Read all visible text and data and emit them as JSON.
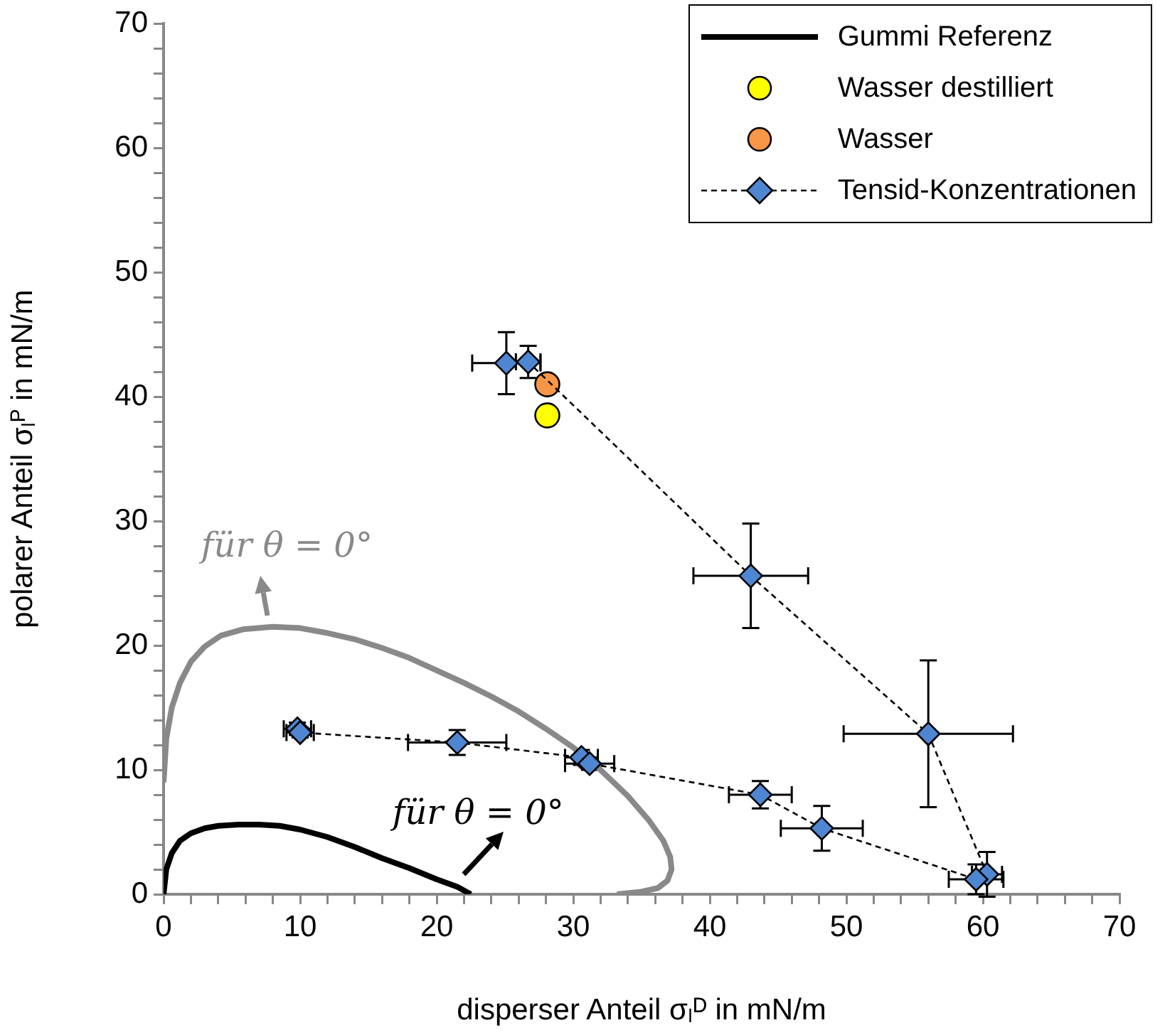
{
  "chart_data": {
    "type": "scatter",
    "xlabel": "disperser Anteil σₗᴰ in mN/m",
    "ylabel": "polarer Anteil σₗᴾ in mN/m",
    "legend": "top right",
    "xlim": [
      0,
      70
    ],
    "ylim": [
      0,
      70
    ],
    "xticks": [
      0,
      {
        "value": 2,
        "label": null
      },
      {
        "value": 4,
        "label": null
      },
      {
        "value": 6,
        "label": null
      },
      {
        "value": 8,
        "label": null
      },
      10,
      {
        "value": 12,
        "label": null
      },
      {
        "value": 14,
        "label": null
      },
      {
        "value": 16,
        "label": null
      },
      {
        "value": 18,
        "label": null
      },
      20,
      {
        "value": 22,
        "label": null
      },
      {
        "value": 24,
        "label": null
      },
      {
        "value": 26,
        "label": null
      },
      {
        "value": 28,
        "label": null
      },
      30,
      {
        "value": 32,
        "label": null
      },
      {
        "value": 34,
        "label": null
      },
      {
        "value": 36,
        "label": null
      },
      {
        "value": 38,
        "label": null
      },
      40,
      {
        "value": 42,
        "label": null
      },
      {
        "value": 44,
        "label": null
      },
      {
        "value": 46,
        "label": null
      },
      {
        "value": 48,
        "label": null
      },
      50,
      {
        "value": 52,
        "label": null
      },
      {
        "value": 54,
        "label": null
      },
      {
        "value": 56,
        "label": null
      },
      {
        "value": 58,
        "label": null
      },
      60,
      {
        "value": 62,
        "label": null
      },
      {
        "value": 64,
        "label": null
      },
      {
        "value": 66,
        "label": null
      },
      {
        "value": 68,
        "label": null
      },
      70
    ],
    "yticks": [
      0,
      {
        "value": 2,
        "label": null
      },
      {
        "value": 4,
        "label": null
      },
      {
        "value": 6,
        "label": null
      },
      {
        "value": 8,
        "label": null
      },
      10,
      {
        "value": 12,
        "label": null
      },
      {
        "value": 14,
        "label": null
      },
      {
        "value": 16,
        "label": null
      },
      {
        "value": 18,
        "label": null
      },
      20,
      {
        "value": 22,
        "label": null
      },
      {
        "value": 24,
        "label": null
      },
      {
        "value": 26,
        "label": null
      },
      {
        "value": 28,
        "label": null
      },
      30,
      {
        "value": 32,
        "label": null
      },
      {
        "value": 34,
        "label": null
      },
      {
        "value": 36,
        "label": null
      },
      {
        "value": 38,
        "label": null
      },
      40,
      {
        "value": 42,
        "label": null
      },
      {
        "value": 44,
        "label": null
      },
      {
        "value": 46,
        "label": null
      },
      {
        "value": 48,
        "label": null
      },
      50,
      {
        "value": 52,
        "label": null
      },
      {
        "value": 54,
        "label": null
      },
      {
        "value": 56,
        "label": null
      },
      {
        "value": 58,
        "label": null
      },
      60,
      {
        "value": 62,
        "label": null
      },
      {
        "value": 64,
        "label": null
      },
      {
        "value": 66,
        "label": null
      },
      {
        "value": 68,
        "label": null
      },
      70
    ],
    "series": [
      {
        "type": "line",
        "color": "#898989",
        "marker": "none",
        "line_style": "solid",
        "x": [
          0,
          0.2,
          0.6,
          1.2,
          2,
          3,
          4.2,
          5.8,
          8,
          10,
          12,
          14,
          16,
          18,
          20,
          22,
          24,
          26,
          28,
          30,
          32,
          34,
          35.5,
          36.6,
          37.1,
          37.2,
          36.9,
          36.2,
          35,
          33.2
        ],
        "values": [
          9,
          12.5,
          15,
          17,
          18.7,
          19.9,
          20.8,
          21.3,
          21.5,
          21.4,
          21,
          20.5,
          19.8,
          19,
          18,
          17,
          15.9,
          14.7,
          13.3,
          11.8,
          10,
          7.9,
          6,
          4.3,
          3,
          2,
          1.1,
          0.5,
          0.2,
          0
        ]
      },
      {
        "name": "Gummi Referenz",
        "type": "line",
        "color": "#000000",
        "marker": "none",
        "line_style": "solid",
        "x": [
          0,
          0.2,
          0.6,
          1.2,
          2,
          3,
          4,
          5.5,
          7,
          8.5,
          10,
          12,
          14,
          16,
          18,
          20,
          21.5,
          22.5
        ],
        "values": [
          0,
          2,
          3.3,
          4.3,
          4.9,
          5.3,
          5.5,
          5.6,
          5.6,
          5.5,
          5.2,
          4.6,
          3.8,
          2.9,
          2.1,
          1.2,
          0.6,
          0
        ]
      },
      {
        "name": "Wasser destilliert",
        "type": "scatter",
        "color": "#ffff00",
        "marker": "circle",
        "x": [
          28.1
        ],
        "values": [
          38.5
        ]
      },
      {
        "name": "Wasser",
        "type": "scatter",
        "color": "#f79646",
        "marker": "circle",
        "x": [
          28.1
        ],
        "values": [
          41
        ]
      },
      {
        "name": "Tensid-Konzentrationen",
        "type": "line",
        "color": "#4f86d1",
        "marker": "diamond",
        "line_style": "dashed",
        "x": [
          25.1,
          26.7,
          43,
          56,
          60.3,
          null,
          9.8,
          10,
          21.5,
          30.6,
          31.2,
          43.7,
          48.2,
          59.5
        ],
        "values": [
          42.7,
          42.8,
          25.6,
          12.9,
          1.6,
          null,
          13.3,
          13,
          12.2,
          11,
          10.5,
          8,
          5.3,
          1.2
        ],
        "xerrors": [
          2.5,
          0.9,
          4.2,
          6.2,
          1.1,
          null,
          1,
          1,
          3.6,
          1.2,
          1.8,
          2.3,
          3,
          2
        ],
        "errors": [
          2.5,
          1.3,
          4.2,
          5.9,
          1.8,
          null,
          0.5,
          0.4,
          1,
          0.6,
          0.5,
          1.1,
          1.8,
          1.2
        ]
      }
    ],
    "annotations": [
      "für θ = 0°",
      "für θ = 0°"
    ]
  }
}
